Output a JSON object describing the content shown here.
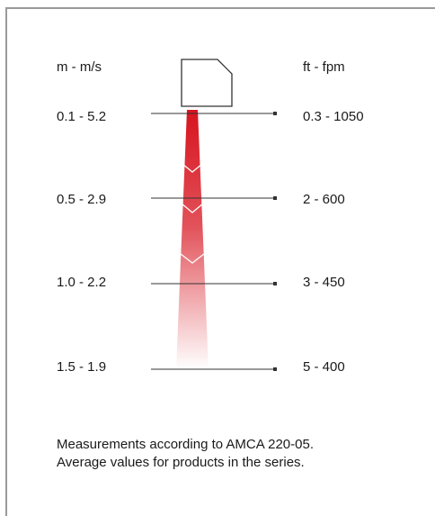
{
  "headers": {
    "left": "m - m/s",
    "right": "ft - fpm"
  },
  "rows": [
    {
      "left": "0.1 - 5.2",
      "right": "0.3 - 1050"
    },
    {
      "left": "0.5 - 2.9",
      "right": "2 - 600"
    },
    {
      "left": "1.0 - 2.2",
      "right": "3 - 450"
    },
    {
      "left": "1.5 - 1.9",
      "right": "5 - 400"
    }
  ],
  "note": {
    "line1": "Measurements according to AMCA 220-05.",
    "line2": "Average values for products in the series."
  },
  "colors": {
    "jet_top": "#d7141e",
    "jet_bottom": "#ffffff",
    "line": "#333333",
    "frame": "#9a9a9a"
  },
  "icons": {
    "unit": "air-curtain-unit-icon"
  }
}
